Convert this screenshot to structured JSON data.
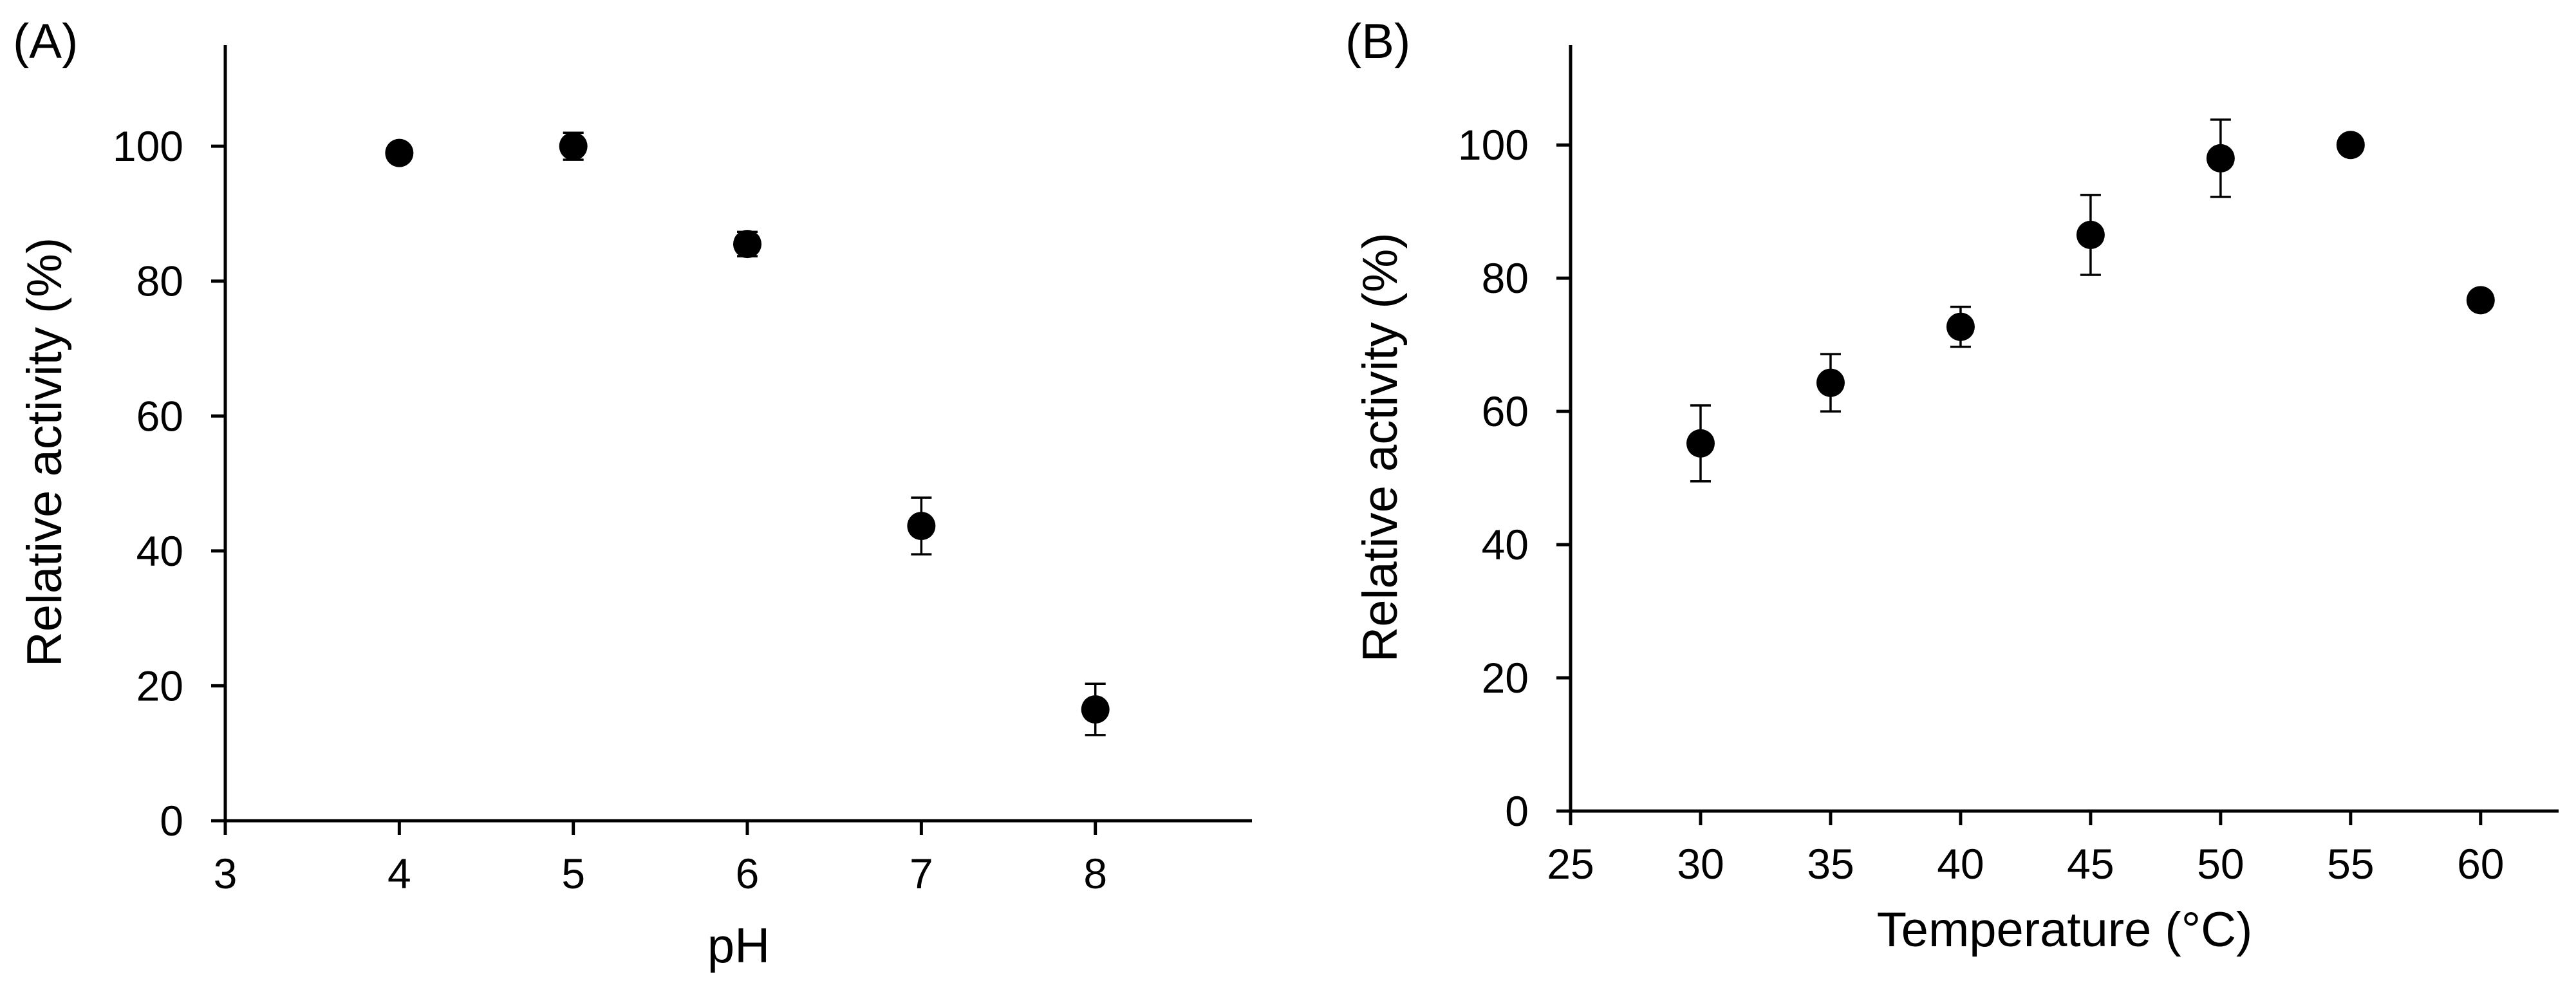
{
  "colors": {
    "marker": "#000000",
    "axis": "#000000",
    "background": "#ffffff"
  },
  "chart_data": [
    {
      "type": "scatter",
      "panel_label": "(A)",
      "xlabel": "pH",
      "ylabel": "Relative activity (%)",
      "xlim": [
        3,
        8.9
      ],
      "ylim": [
        0,
        115
      ],
      "xticks": [
        3,
        4,
        5,
        6,
        7,
        8
      ],
      "yticks": [
        0,
        20,
        40,
        60,
        80,
        100
      ],
      "grid": false,
      "legend": "none",
      "x": [
        4,
        5,
        6,
        7,
        8
      ],
      "y": [
        99,
        100,
        85.5,
        43.7,
        16.5
      ],
      "error": [
        0.8,
        2.0,
        1.8,
        4.2,
        3.8
      ]
    },
    {
      "type": "scatter",
      "panel_label": "(B)",
      "xlabel": "Temperature (°C)",
      "ylabel": "Relative activity (%)",
      "xlim": [
        25,
        63
      ],
      "ylim": [
        0,
        115
      ],
      "xticks": [
        25,
        30,
        35,
        40,
        45,
        50,
        55,
        60
      ],
      "yticks": [
        0,
        20,
        40,
        60,
        80,
        100
      ],
      "grid": false,
      "legend": "none",
      "x": [
        30,
        35,
        40,
        45,
        50,
        55,
        60
      ],
      "y": [
        55.2,
        64.3,
        72.7,
        86.5,
        98.0,
        100,
        76.7
      ],
      "error": [
        5.7,
        4.3,
        3.0,
        6.0,
        5.8,
        0.8,
        0.7
      ]
    }
  ]
}
